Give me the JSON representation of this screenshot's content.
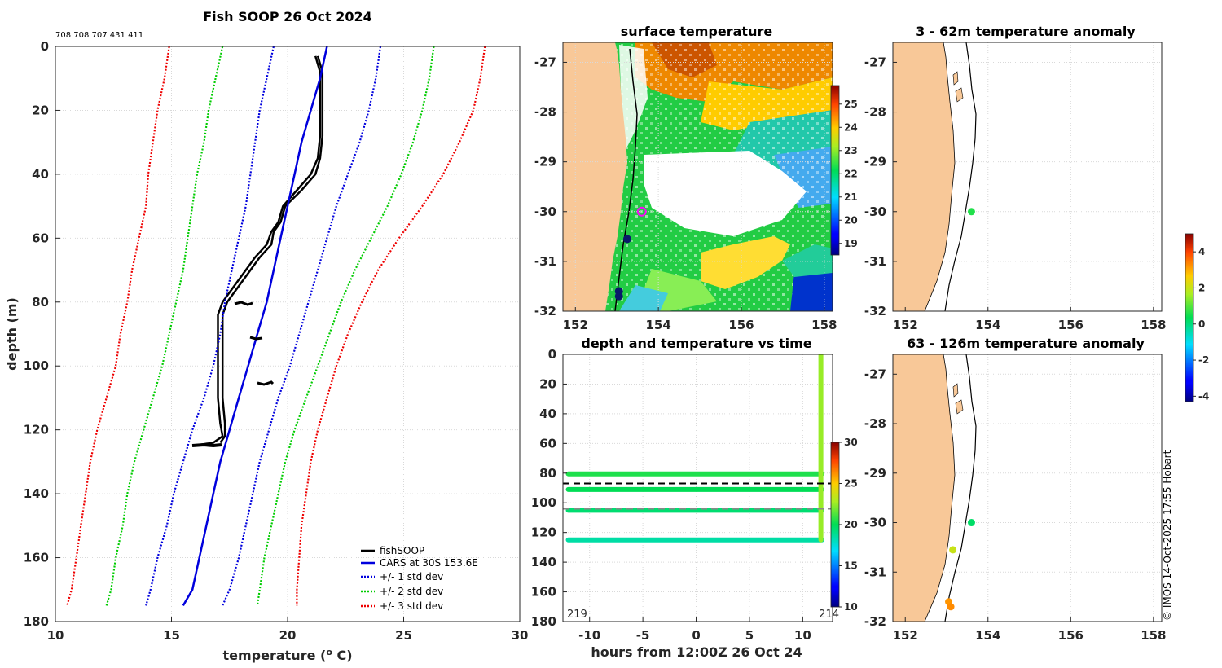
{
  "chart_data": [
    {
      "type": "line",
      "title": "Fish SOOP 26 Oct 2024",
      "subtitle": "708 708 707 431 411",
      "xlabel": "temperature (",
      "xlabel_sup": "o",
      "xlabel_end": " C)",
      "ylabel": "depth (m)",
      "xlim": [
        10,
        30
      ],
      "ylim": [
        0,
        180
      ],
      "xticks": [
        "10",
        "15",
        "20",
        "25",
        "30"
      ],
      "yticks": [
        "0",
        "20",
        "40",
        "60",
        "80",
        "100",
        "120",
        "140",
        "160",
        "180"
      ],
      "series": [
        {
          "name": "fishSOOP",
          "color": "#000000",
          "style": "solid",
          "depth": [
            3,
            8,
            15,
            20,
            28,
            35,
            40,
            45,
            50,
            55,
            58,
            62,
            66,
            70,
            74,
            78,
            80,
            84,
            88,
            92,
            100,
            110,
            118,
            122,
            124,
            125
          ],
          "temp": [
            21.2,
            21.4,
            21.4,
            21.4,
            21.4,
            21.3,
            21.0,
            20.4,
            19.8,
            19.6,
            19.3,
            19.1,
            18.6,
            18.2,
            17.8,
            17.4,
            17.2,
            17.0,
            17.0,
            17.0,
            17.0,
            17.0,
            17.1,
            17.2,
            16.8,
            15.9
          ]
        },
        {
          "name": "fishSOOP",
          "color": "#000000",
          "style": "solid",
          "depth": [
            3,
            8,
            15,
            20,
            28,
            35,
            40,
            45,
            50,
            55,
            58,
            62,
            66,
            70,
            74,
            78,
            80,
            84,
            88,
            92,
            100,
            110,
            118,
            122,
            124
          ],
          "temp": [
            21.3,
            21.5,
            21.5,
            21.5,
            21.5,
            21.4,
            21.2,
            20.6,
            19.9,
            19.7,
            19.4,
            19.3,
            18.8,
            18.4,
            18.0,
            17.6,
            17.4,
            17.2,
            17.2,
            17.2,
            17.2,
            17.2,
            17.3,
            17.3,
            17.1
          ]
        },
        {
          "name": "CARS at 30S 153.6E",
          "color": "#0000dd",
          "style": "solid",
          "depth": [
            0,
            10,
            20,
            30,
            40,
            50,
            60,
            70,
            80,
            90,
            100,
            110,
            120,
            130,
            140,
            150,
            160,
            170,
            175
          ],
          "temp": [
            21.7,
            21.4,
            21.0,
            20.6,
            20.3,
            20.0,
            19.7,
            19.4,
            19.1,
            18.7,
            18.3,
            17.9,
            17.5,
            17.1,
            16.8,
            16.5,
            16.2,
            15.9,
            15.5
          ]
        },
        {
          "name": "+/- 1 std dev",
          "color": "#0000dd",
          "style": "dotted",
          "depth": [
            0,
            10,
            20,
            30,
            40,
            50,
            60,
            70,
            80,
            90,
            100,
            110,
            120,
            130,
            140,
            150,
            160,
            170,
            175
          ],
          "temp": [
            19.4,
            19.1,
            18.8,
            18.6,
            18.4,
            18.2,
            17.9,
            17.6,
            17.3,
            17.1,
            16.8,
            16.4,
            15.9,
            15.5,
            15.1,
            14.8,
            14.4,
            14.1,
            13.9
          ]
        },
        {
          "name": "+/- 1 std dev",
          "color": "#0000dd",
          "style": "dotted",
          "depth": [
            0,
            10,
            20,
            30,
            40,
            50,
            60,
            70,
            80,
            90,
            100,
            110,
            120,
            130,
            140,
            150,
            160,
            170,
            175
          ],
          "temp": [
            24.0,
            23.8,
            23.5,
            23.1,
            22.6,
            22.1,
            21.7,
            21.3,
            20.9,
            20.5,
            20.1,
            19.6,
            19.2,
            18.8,
            18.5,
            18.2,
            17.9,
            17.5,
            17.2
          ]
        },
        {
          "name": "+/- 2 std dev",
          "color": "#00cc00",
          "style": "dotted",
          "depth": [
            0,
            10,
            20,
            30,
            40,
            50,
            60,
            70,
            80,
            90,
            100,
            110,
            120,
            130,
            140,
            150,
            160,
            170,
            175
          ],
          "temp": [
            17.2,
            16.9,
            16.6,
            16.4,
            16.1,
            15.9,
            15.7,
            15.5,
            15.2,
            14.9,
            14.6,
            14.2,
            13.8,
            13.4,
            13.1,
            12.9,
            12.6,
            12.4,
            12.2
          ]
        },
        {
          "name": "+/- 2 std dev",
          "color": "#00cc00",
          "style": "dotted",
          "depth": [
            0,
            10,
            20,
            30,
            40,
            50,
            60,
            70,
            80,
            90,
            100,
            110,
            120,
            130,
            140,
            150,
            160,
            170,
            175
          ],
          "temp": [
            26.3,
            26.1,
            25.8,
            25.4,
            24.9,
            24.3,
            23.6,
            22.9,
            22.3,
            21.8,
            21.3,
            20.8,
            20.3,
            19.9,
            19.6,
            19.3,
            19.0,
            18.8,
            18.7
          ]
        },
        {
          "name": "+/- 3 std dev",
          "color": "#ee0000",
          "style": "dotted",
          "depth": [
            0,
            10,
            20,
            30,
            40,
            50,
            60,
            70,
            80,
            90,
            100,
            110,
            120,
            130,
            140,
            150,
            160,
            170,
            175
          ],
          "temp": [
            14.9,
            14.7,
            14.4,
            14.2,
            14.0,
            13.9,
            13.6,
            13.3,
            13.1,
            12.8,
            12.6,
            12.2,
            11.8,
            11.5,
            11.3,
            11.1,
            10.9,
            10.7,
            10.5
          ]
        },
        {
          "name": "+/- 3 std dev",
          "color": "#ee0000",
          "style": "dotted",
          "depth": [
            0,
            10,
            20,
            30,
            40,
            50,
            60,
            70,
            80,
            90,
            100,
            110,
            120,
            130,
            140,
            150,
            160,
            170,
            175
          ],
          "temp": [
            28.5,
            28.3,
            28.0,
            27.4,
            26.7,
            25.8,
            24.8,
            23.9,
            23.2,
            22.6,
            22.1,
            21.7,
            21.3,
            21.0,
            20.8,
            20.6,
            20.5,
            20.4,
            20.4
          ]
        }
      ],
      "legend": [
        "fishSOOP",
        "CARS at 30S 153.6E",
        "+/- 1 std dev",
        "+/- 2 std dev",
        "+/- 3 std dev"
      ],
      "legend_position": "bottom-right"
    },
    {
      "type": "heatmap",
      "title": "surface temperature",
      "xlim": [
        151.7,
        158.2
      ],
      "ylim": [
        -32,
        -26.6
      ],
      "xticks": [
        "152",
        "154",
        "156",
        "158"
      ],
      "yticks": [
        "-27",
        "-28",
        "-29",
        "-30",
        "-31",
        "-32"
      ],
      "colorbar_ticks": [
        "25",
        "24",
        "23",
        "22",
        "21",
        "20",
        "19"
      ],
      "colorbar_range": [
        18.5,
        25.8
      ],
      "markers": [
        {
          "lon": 153.6,
          "lat": -30.0,
          "color": "#ff00ff"
        },
        {
          "lon": 153.25,
          "lat": -30.55,
          "color": "#0a1a6a"
        },
        {
          "lon": 153.05,
          "lat": -31.6,
          "color": "#0a1a6a"
        },
        {
          "lon": 153.05,
          "lat": -31.7,
          "color": "#0a1a6a"
        }
      ]
    },
    {
      "type": "scatter",
      "title": "depth and temperature vs time",
      "xlabel": "hours from 12:00Z 26 Oct 24",
      "xlim": [
        -12.5,
        12.8
      ],
      "ylim": [
        0,
        180
      ],
      "xticks": [
        "-10",
        "-5",
        "0",
        "5",
        "10"
      ],
      "yticks": [
        "0",
        "20",
        "40",
        "60",
        "80",
        "100",
        "120",
        "140",
        "160",
        "180"
      ],
      "colorbar_ticks": [
        "30",
        "25",
        "20",
        "15",
        "10"
      ],
      "colorbar_range": [
        10,
        30
      ],
      "corner_left": "219",
      "corner_right": "214",
      "tracks": [
        {
          "depth": 80.5,
          "t_start": -12.0,
          "t_end": 11.8,
          "temp": 20.5
        },
        {
          "depth": 91.0,
          "t_start": -12.0,
          "t_end": 11.8,
          "temp": 20.0
        },
        {
          "depth": 105.0,
          "t_start": -12.0,
          "t_end": 11.8,
          "temp": 19.5
        },
        {
          "depth": 125.0,
          "t_start": -12.0,
          "t_end": 11.8,
          "temp": 18.5
        }
      ],
      "profile": {
        "time": 11.7,
        "depth_start": 0,
        "depth_end": 125,
        "temp": 22.5
      },
      "dashed_lines": [
        {
          "depth": 87,
          "color": "#000000"
        },
        {
          "depth": 104,
          "color": "#888888"
        }
      ]
    },
    {
      "type": "scatter",
      "title": "3 - 62m temperature anomaly",
      "xlim": [
        151.7,
        158.2
      ],
      "ylim": [
        -32,
        -26.6
      ],
      "xticks": [
        "152",
        "154",
        "156",
        "158"
      ],
      "yticks": [
        "-27",
        "-28",
        "-29",
        "-30",
        "-31",
        "-32"
      ],
      "points": [
        {
          "lon": 153.6,
          "lat": -30.0,
          "anomaly": 0.6
        }
      ]
    },
    {
      "type": "scatter",
      "title": "63 - 126m temperature anomaly",
      "xlim": [
        151.7,
        158.2
      ],
      "ylim": [
        -32,
        -26.6
      ],
      "xticks": [
        "152",
        "154",
        "156",
        "158"
      ],
      "yticks": [
        "-27",
        "-28",
        "-29",
        "-30",
        "-31",
        "-32"
      ],
      "points": [
        {
          "lon": 153.6,
          "lat": -30.0,
          "anomaly": 0.2
        },
        {
          "lon": 153.15,
          "lat": -30.55,
          "anomaly": 2.0
        },
        {
          "lon": 153.05,
          "lat": -31.6,
          "anomaly": 3.2
        },
        {
          "lon": 153.1,
          "lat": -31.7,
          "anomaly": 3.3
        }
      ],
      "colorbar_ticks": [
        "4",
        "2",
        "0",
        "-2",
        "-4"
      ],
      "colorbar_range": [
        -4.3,
        5.0
      ]
    }
  ],
  "footer": {
    "credit": "© IMOS 14-Oct-2025 17:55 Hobart"
  },
  "colors": {
    "land": "#f8c898",
    "frame": "#262626",
    "grid": "#d9d9d9"
  }
}
